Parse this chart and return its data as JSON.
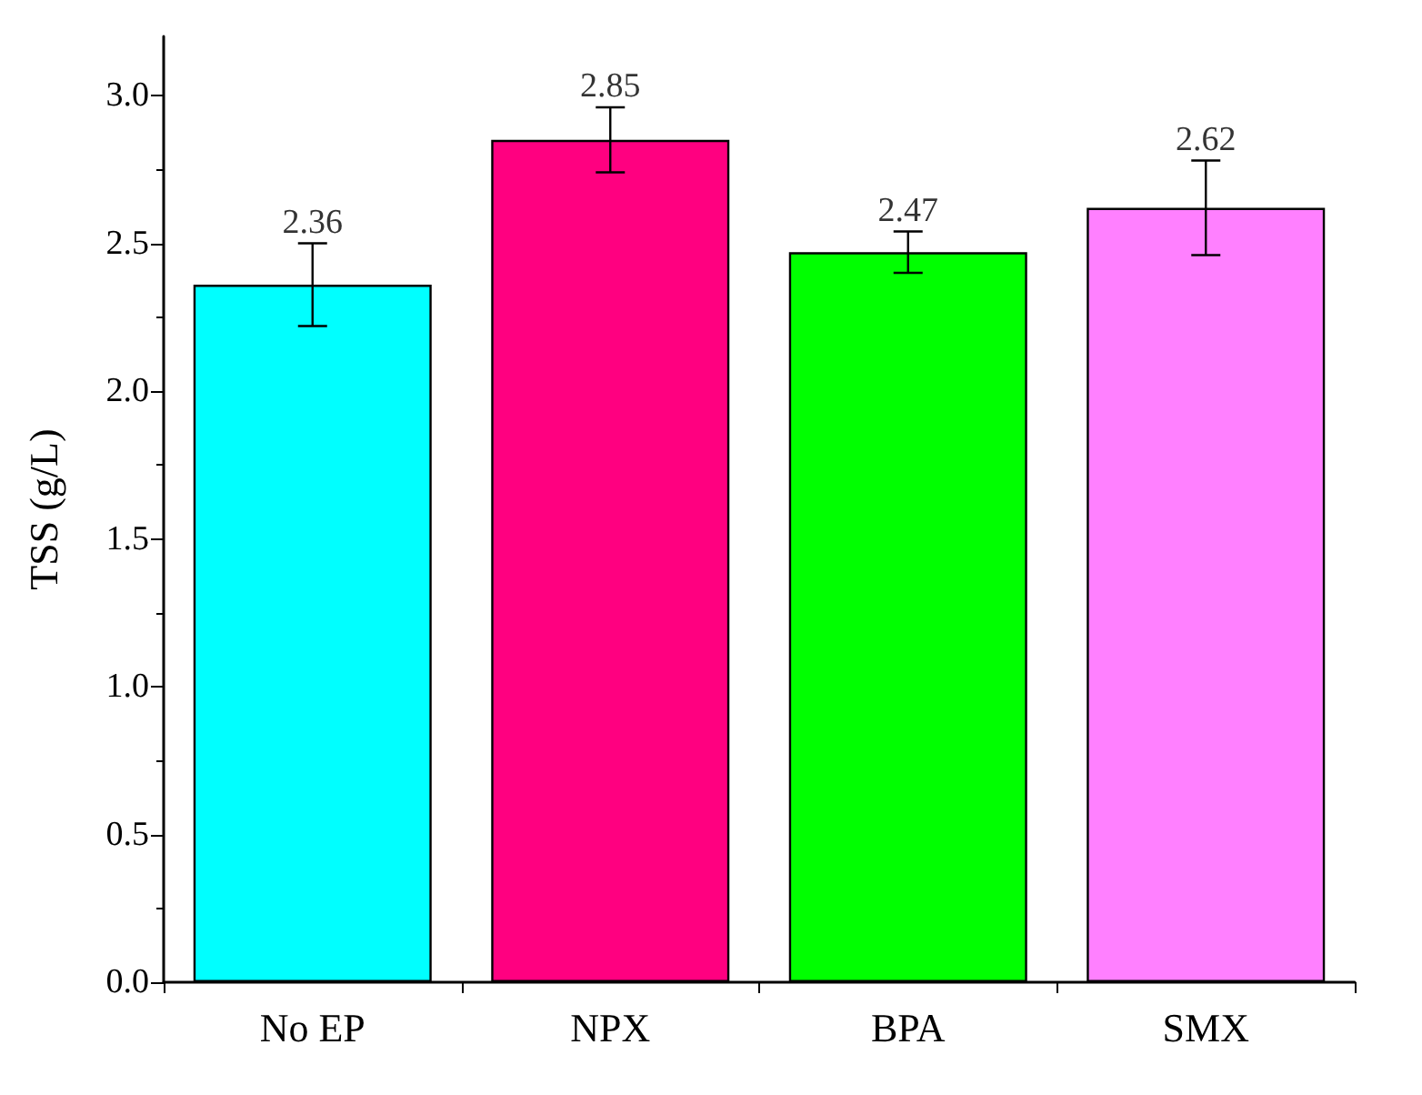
{
  "chart_data": {
    "type": "bar",
    "ylabel": "TSS (g/L)",
    "categories": [
      "No EP",
      "NPX",
      "BPA",
      "SMX"
    ],
    "values": [
      2.36,
      2.85,
      2.47,
      2.62
    ],
    "colors": [
      "#00ffff",
      "#ff0080",
      "#00ff00",
      "#ff80ff"
    ],
    "errors": [
      0.14,
      0.11,
      0.07,
      0.16
    ],
    "data_labels": true,
    "ylim": [
      0,
      3.2
    ],
    "yticks": [
      {
        "value": 0,
        "label": "0.0"
      },
      {
        "value": 0.5,
        "label": "0.5"
      },
      {
        "value": 1,
        "label": "1.0"
      },
      {
        "value": 1.5,
        "label": "1.5"
      },
      {
        "value": 2,
        "label": "2.0"
      },
      {
        "value": 2.5,
        "label": "2.5"
      },
      {
        "value": 3,
        "label": "3.0"
      }
    ],
    "grid": false
  }
}
